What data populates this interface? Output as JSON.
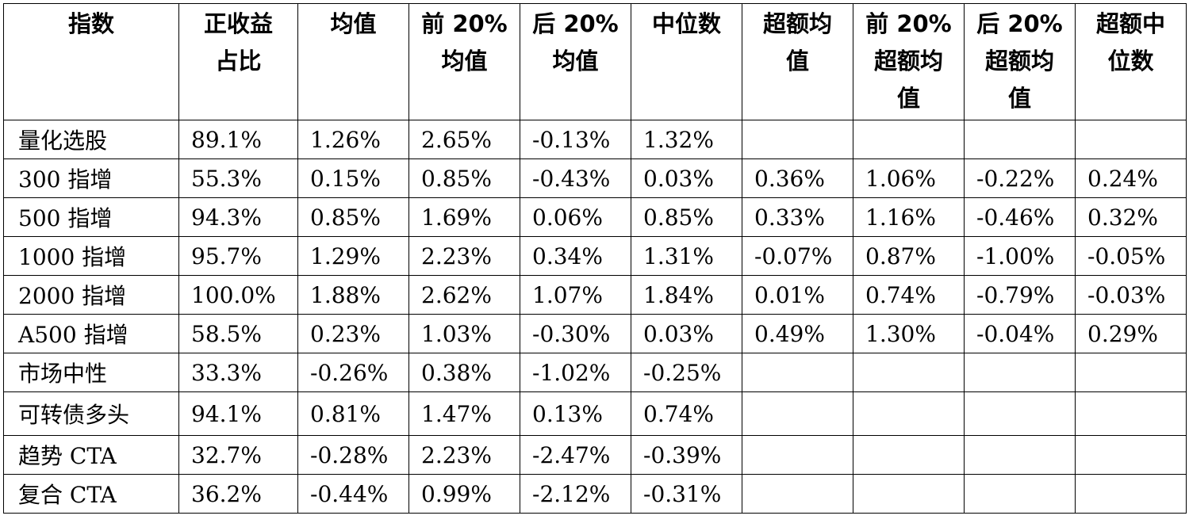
{
  "table": {
    "headers": [
      [
        "指数"
      ],
      [
        "正收益",
        "占比"
      ],
      [
        "均值"
      ],
      [
        "前 20%",
        "均值"
      ],
      [
        "后 20%",
        "均值"
      ],
      [
        "中位数"
      ],
      [
        "超额均",
        "值"
      ],
      [
        "前 20%",
        "超额均",
        "值"
      ],
      [
        "后 20%",
        "超额均",
        "值"
      ],
      [
        "超额中",
        "位数"
      ]
    ],
    "rows": [
      [
        "量化选股",
        "89.1%",
        "1.26%",
        "2.65%",
        "-0.13%",
        "1.32%"
      ],
      [
        "300 指增",
        "55.3%",
        "0.15%",
        "0.85%",
        "-0.43%",
        "0.03%",
        "0.36%",
        "1.06%",
        "-0.22%",
        "0.24%"
      ],
      [
        "500 指增",
        "94.3%",
        "0.85%",
        "1.69%",
        "0.06%",
        "0.85%",
        "0.33%",
        "1.16%",
        "-0.46%",
        "0.32%"
      ],
      [
        "1000 指增",
        "95.7%",
        "1.29%",
        "2.23%",
        "0.34%",
        "1.31%",
        "-0.07%",
        "0.87%",
        "-1.00%",
        "-0.05%"
      ],
      [
        "2000 指增",
        "100.0%",
        "1.88%",
        "2.62%",
        "1.07%",
        "1.84%",
        "0.01%",
        "0.74%",
        "-0.79%",
        "-0.03%"
      ],
      [
        "A500 指增",
        "58.5%",
        "0.23%",
        "1.03%",
        "-0.30%",
        "0.03%",
        "0.49%",
        "1.30%",
        "-0.04%",
        "0.29%"
      ],
      [
        "市场中性",
        "33.3%",
        "-0.26%",
        "0.38%",
        "-1.02%",
        "-0.25%"
      ],
      [
        "可转债多头",
        "94.1%",
        "0.81%",
        "1.47%",
        "0.13%",
        "0.74%"
      ],
      [
        "趋势 CTA",
        "32.7%",
        "-0.28%",
        "2.23%",
        "-2.47%",
        "-0.39%"
      ],
      [
        "复合 CTA",
        "36.2%",
        "-0.44%",
        "0.99%",
        "-2.12%",
        "-0.31%"
      ]
    ]
  }
}
